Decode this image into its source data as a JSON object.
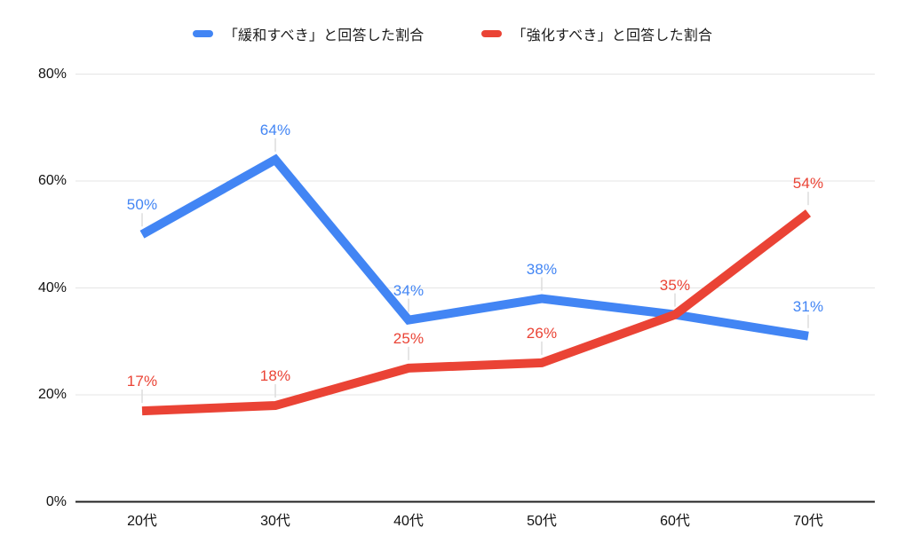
{
  "chart_data": {
    "type": "line",
    "title": "",
    "xlabel": "",
    "ylabel": "",
    "categories": [
      "20代",
      "30代",
      "40代",
      "50代",
      "60代",
      "70代"
    ],
    "series": [
      {
        "name": "「緩和すべき」と回答した割合",
        "color": "#4285F4",
        "values": [
          50,
          64,
          34,
          38,
          35,
          31
        ],
        "point_labels": [
          "50%",
          "64%",
          "34%",
          "38%",
          "",
          "31%"
        ]
      },
      {
        "name": "「強化すべき」と回答した割合",
        "color": "#EA4335",
        "values": [
          17,
          18,
          25,
          26,
          35,
          54
        ],
        "point_labels": [
          "17%",
          "18%",
          "25%",
          "26%",
          "35%",
          "54%"
        ]
      }
    ],
    "ylim": [
      0,
      80
    ],
    "y_ticks": [
      {
        "value": 0,
        "label": "0%"
      },
      {
        "value": 20,
        "label": "20%"
      },
      {
        "value": 40,
        "label": "40%"
      },
      {
        "value": 60,
        "label": "60%"
      },
      {
        "value": 80,
        "label": "80%"
      }
    ],
    "grid": "horizontal",
    "legend_position": "top",
    "colors": {
      "series_blue": "#4285F4",
      "series_red": "#EA4335",
      "gridline": "#e5e5e5",
      "axis_line": "#212121",
      "leader_line": "#dcdcdc",
      "tick_text": "#111111",
      "legend_text": "#1a1a1a",
      "background": "#ffffff"
    }
  }
}
